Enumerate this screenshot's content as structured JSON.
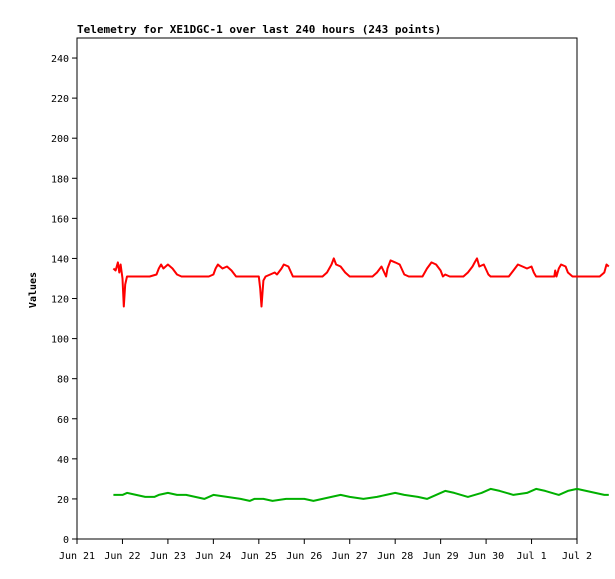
{
  "chart_data": {
    "type": "line",
    "title": "Telemetry for XE1DGC-1 over last 240 hours (243 points)",
    "xlabel": "",
    "ylabel": "Values",
    "ylim": [
      0,
      250
    ],
    "yticks": [
      0,
      20,
      40,
      60,
      80,
      100,
      120,
      140,
      160,
      180,
      200,
      220,
      240
    ],
    "x_ticks": [
      "Jun 21",
      "Jun 22",
      "Jun 23",
      "Jun 24",
      "Jun 25",
      "Jun 26",
      "Jun 27",
      "Jun 28",
      "Jun 29",
      "Jun 30",
      "Jul 1",
      "Jul 2"
    ],
    "xlim_days": [
      0,
      11
    ],
    "grid": false,
    "legend": "none",
    "series": [
      {
        "color": "#ff0000",
        "points": [
          [
            0.8,
            135
          ],
          [
            0.85,
            134
          ],
          [
            0.9,
            138
          ],
          [
            0.93,
            133
          ],
          [
            0.96,
            137
          ],
          [
            1.0,
            130
          ],
          [
            1.03,
            116
          ],
          [
            1.06,
            127
          ],
          [
            1.1,
            131
          ],
          [
            1.3,
            131
          ],
          [
            1.6,
            131
          ],
          [
            1.75,
            132
          ],
          [
            1.8,
            135
          ],
          [
            1.85,
            137
          ],
          [
            1.9,
            135
          ],
          [
            2.0,
            137
          ],
          [
            2.1,
            135
          ],
          [
            2.2,
            132
          ],
          [
            2.3,
            131
          ],
          [
            2.6,
            131
          ],
          [
            2.9,
            131
          ],
          [
            3.0,
            132
          ],
          [
            3.05,
            135
          ],
          [
            3.1,
            137
          ],
          [
            3.2,
            135
          ],
          [
            3.3,
            136
          ],
          [
            3.4,
            134
          ],
          [
            3.5,
            131
          ],
          [
            3.7,
            131
          ],
          [
            3.9,
            131
          ],
          [
            4.0,
            131
          ],
          [
            4.03,
            125
          ],
          [
            4.06,
            116
          ],
          [
            4.1,
            129
          ],
          [
            4.15,
            131
          ],
          [
            4.25,
            132
          ],
          [
            4.35,
            133
          ],
          [
            4.4,
            132
          ],
          [
            4.5,
            135
          ],
          [
            4.55,
            137
          ],
          [
            4.65,
            136
          ],
          [
            4.75,
            131
          ],
          [
            5.0,
            131
          ],
          [
            5.4,
            131
          ],
          [
            5.5,
            133
          ],
          [
            5.6,
            137
          ],
          [
            5.65,
            140
          ],
          [
            5.7,
            137
          ],
          [
            5.8,
            136
          ],
          [
            5.9,
            133
          ],
          [
            6.0,
            131
          ],
          [
            6.3,
            131
          ],
          [
            6.5,
            131
          ],
          [
            6.6,
            133
          ],
          [
            6.7,
            136
          ],
          [
            6.8,
            131
          ],
          [
            6.83,
            135
          ],
          [
            6.9,
            139
          ],
          [
            7.0,
            138
          ],
          [
            7.1,
            137
          ],
          [
            7.2,
            132
          ],
          [
            7.3,
            131
          ],
          [
            7.6,
            131
          ],
          [
            7.7,
            135
          ],
          [
            7.8,
            138
          ],
          [
            7.9,
            137
          ],
          [
            8.0,
            134
          ],
          [
            8.05,
            131
          ],
          [
            8.1,
            132
          ],
          [
            8.2,
            131
          ],
          [
            8.5,
            131
          ],
          [
            8.6,
            133
          ],
          [
            8.7,
            136
          ],
          [
            8.75,
            138
          ],
          [
            8.8,
            140
          ],
          [
            8.85,
            136
          ],
          [
            8.95,
            137
          ],
          [
            9.05,
            132
          ],
          [
            9.1,
            131
          ],
          [
            9.5,
            131
          ],
          [
            9.6,
            134
          ],
          [
            9.7,
            137
          ],
          [
            9.8,
            136
          ],
          [
            9.9,
            135
          ],
          [
            10.0,
            136
          ],
          [
            10.05,
            133
          ],
          [
            10.1,
            131
          ],
          [
            10.3,
            131
          ],
          [
            10.5,
            131
          ],
          [
            10.52,
            134
          ],
          [
            10.55,
            131
          ],
          [
            10.6,
            135
          ],
          [
            10.65,
            137
          ],
          [
            10.75,
            136
          ],
          [
            10.8,
            133
          ],
          [
            10.9,
            131
          ],
          [
            11.2,
            131
          ],
          [
            11.5,
            131
          ],
          [
            11.6,
            133
          ],
          [
            11.65,
            137
          ],
          [
            11.7,
            136
          ]
        ]
      },
      {
        "color": "#00b000",
        "points": [
          [
            0.8,
            22
          ],
          [
            1.0,
            22
          ],
          [
            1.1,
            23
          ],
          [
            1.3,
            22
          ],
          [
            1.5,
            21
          ],
          [
            1.7,
            21
          ],
          [
            1.8,
            22
          ],
          [
            2.0,
            23
          ],
          [
            2.2,
            22
          ],
          [
            2.4,
            22
          ],
          [
            2.6,
            21
          ],
          [
            2.8,
            20
          ],
          [
            3.0,
            22
          ],
          [
            3.3,
            21
          ],
          [
            3.6,
            20
          ],
          [
            3.8,
            19
          ],
          [
            3.9,
            20
          ],
          [
            4.1,
            20
          ],
          [
            4.3,
            19
          ],
          [
            4.6,
            20
          ],
          [
            5.0,
            20
          ],
          [
            5.2,
            19
          ],
          [
            5.4,
            20
          ],
          [
            5.6,
            21
          ],
          [
            5.8,
            22
          ],
          [
            6.0,
            21
          ],
          [
            6.3,
            20
          ],
          [
            6.6,
            21
          ],
          [
            6.8,
            22
          ],
          [
            7.0,
            23
          ],
          [
            7.2,
            22
          ],
          [
            7.5,
            21
          ],
          [
            7.7,
            20
          ],
          [
            7.9,
            22
          ],
          [
            8.1,
            24
          ],
          [
            8.3,
            23
          ],
          [
            8.6,
            21
          ],
          [
            8.9,
            23
          ],
          [
            9.1,
            25
          ],
          [
            9.3,
            24
          ],
          [
            9.6,
            22
          ],
          [
            9.9,
            23
          ],
          [
            10.1,
            25
          ],
          [
            10.3,
            24
          ],
          [
            10.6,
            22
          ],
          [
            10.8,
            24
          ],
          [
            11.0,
            25
          ],
          [
            11.2,
            24
          ],
          [
            11.4,
            23
          ],
          [
            11.6,
            22
          ],
          [
            11.7,
            22
          ]
        ]
      }
    ]
  }
}
